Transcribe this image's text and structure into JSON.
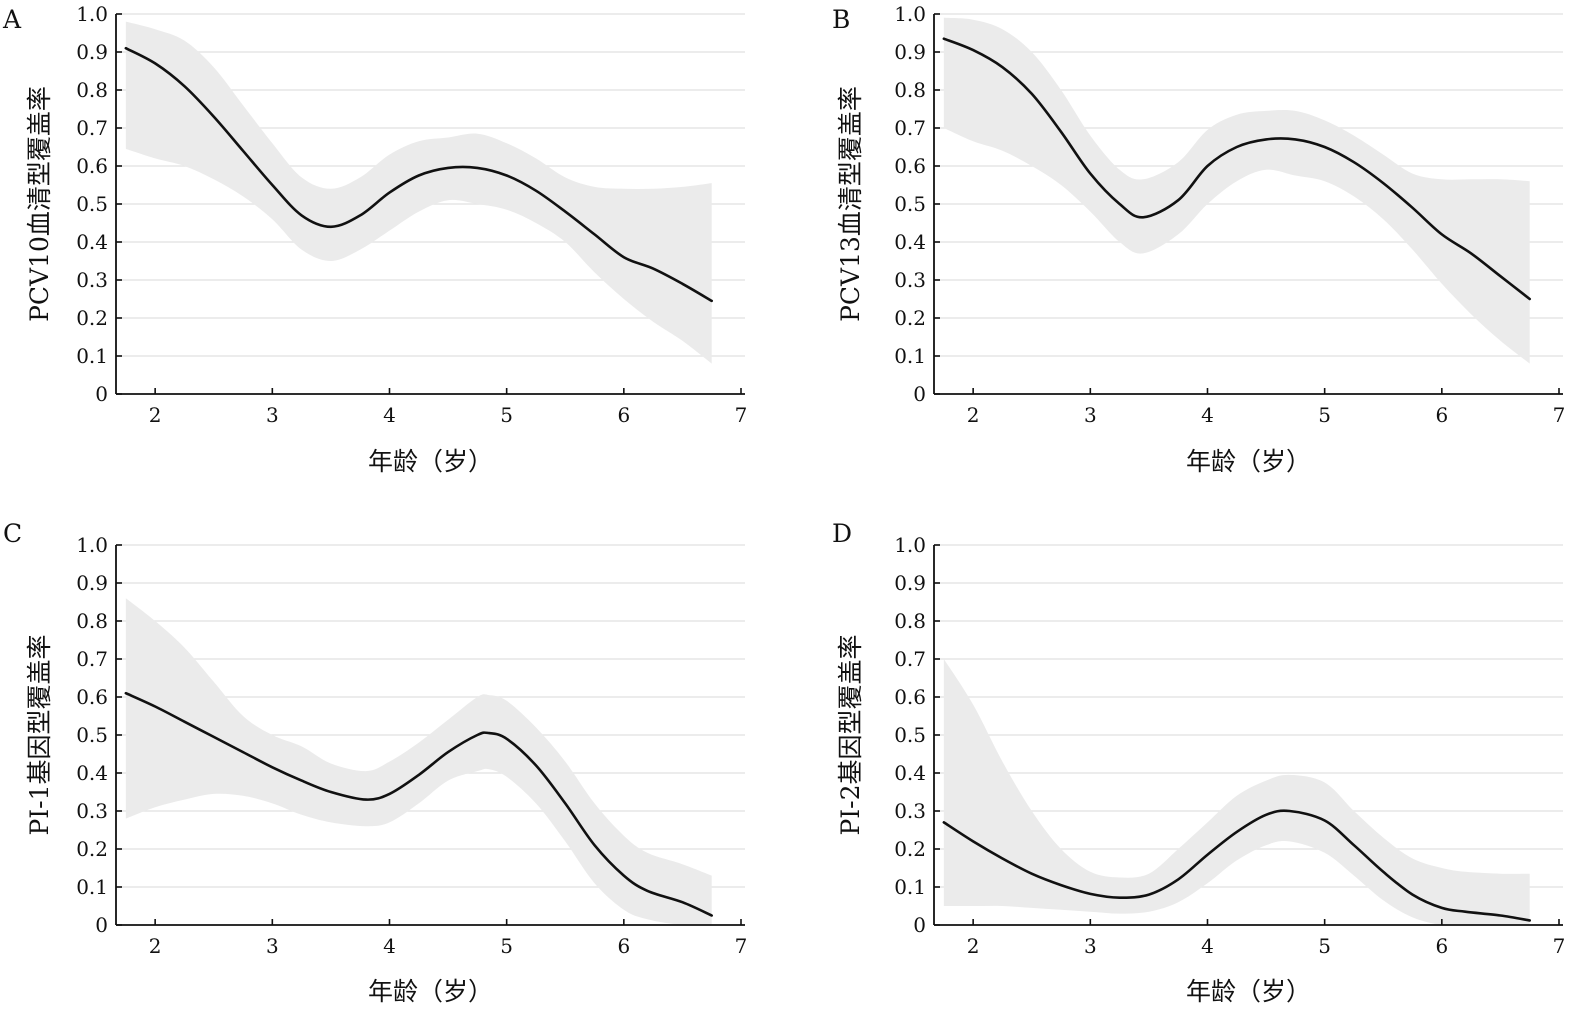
{
  "figure": {
    "panels": [
      "A",
      "B",
      "C",
      "D"
    ]
  },
  "chart_data": [
    {
      "panel": "A",
      "type": "line",
      "ylabel": "PCV10血清型覆盖率",
      "xlabel": "年龄（岁）",
      "xlim": [
        1.7,
        7.0
      ],
      "ylim": [
        0,
        1.0
      ],
      "x_ticks": [
        2,
        3,
        4,
        5,
        6,
        7
      ],
      "y_ticks": [
        0,
        0.1,
        0.2,
        0.3,
        0.4,
        0.5,
        0.6,
        0.7,
        0.8,
        0.9,
        1.0
      ],
      "y_tick_labels": [
        "0",
        "0.1",
        "0.2",
        "0.3",
        "0.4",
        "0.5",
        "0.6",
        "0.7",
        "0.8",
        "0.9",
        "1.0"
      ],
      "grid": "horizontal",
      "x": [
        1.75,
        2.0,
        2.25,
        2.5,
        2.75,
        3.0,
        3.25,
        3.5,
        3.75,
        4.0,
        4.25,
        4.5,
        4.75,
        5.0,
        5.25,
        5.5,
        5.75,
        6.0,
        6.25,
        6.5,
        6.75
      ],
      "y": [
        0.91,
        0.87,
        0.81,
        0.73,
        0.64,
        0.55,
        0.47,
        0.44,
        0.47,
        0.53,
        0.575,
        0.595,
        0.595,
        0.575,
        0.535,
        0.48,
        0.42,
        0.36,
        0.33,
        0.29,
        0.245
      ],
      "ci_upper": [
        0.98,
        0.96,
        0.93,
        0.86,
        0.76,
        0.66,
        0.57,
        0.54,
        0.57,
        0.63,
        0.665,
        0.675,
        0.685,
        0.66,
        0.62,
        0.57,
        0.545,
        0.54,
        0.54,
        0.545,
        0.555
      ],
      "ci_lower": [
        0.645,
        0.62,
        0.6,
        0.565,
        0.52,
        0.46,
        0.38,
        0.35,
        0.38,
        0.43,
        0.48,
        0.51,
        0.5,
        0.485,
        0.45,
        0.4,
        0.32,
        0.25,
        0.19,
        0.14,
        0.08
      ]
    },
    {
      "panel": "B",
      "type": "line",
      "ylabel": "PCV13血清型覆盖率",
      "xlabel": "年龄（岁）",
      "xlim": [
        1.7,
        7.0
      ],
      "ylim": [
        0,
        1.0
      ],
      "x_ticks": [
        2,
        3,
        4,
        5,
        6,
        7
      ],
      "y_ticks": [
        0,
        0.1,
        0.2,
        0.3,
        0.4,
        0.5,
        0.6,
        0.7,
        0.8,
        0.9,
        1.0
      ],
      "y_tick_labels": [
        "0",
        "0.1",
        "0.2",
        "0.3",
        "0.4",
        "0.5",
        "0.6",
        "0.7",
        "0.8",
        "0.9",
        "1.0"
      ],
      "grid": "horizontal",
      "x": [
        1.75,
        2.0,
        2.25,
        2.5,
        2.75,
        3.0,
        3.25,
        3.45,
        3.75,
        4.0,
        4.25,
        4.5,
        4.75,
        5.0,
        5.25,
        5.5,
        5.75,
        6.0,
        6.25,
        6.5,
        6.75
      ],
      "y": [
        0.935,
        0.905,
        0.86,
        0.79,
        0.69,
        0.58,
        0.5,
        0.465,
        0.51,
        0.6,
        0.65,
        0.67,
        0.67,
        0.65,
        0.61,
        0.555,
        0.49,
        0.42,
        0.37,
        0.31,
        0.25
      ],
      "ci_upper": [
        0.99,
        0.985,
        0.96,
        0.9,
        0.8,
        0.68,
        0.59,
        0.565,
        0.61,
        0.695,
        0.735,
        0.745,
        0.745,
        0.72,
        0.68,
        0.63,
        0.58,
        0.565,
        0.565,
        0.565,
        0.56
      ],
      "ci_lower": [
        0.7,
        0.665,
        0.64,
        0.6,
        0.55,
        0.48,
        0.4,
        0.37,
        0.42,
        0.5,
        0.56,
        0.59,
        0.575,
        0.56,
        0.52,
        0.46,
        0.38,
        0.29,
        0.21,
        0.14,
        0.08
      ]
    },
    {
      "panel": "C",
      "type": "line",
      "ylabel": "PI-1基因型覆盖率",
      "xlabel": "年龄（岁）",
      "xlim": [
        1.7,
        7.0
      ],
      "ylim": [
        0,
        1.0
      ],
      "x_ticks": [
        2,
        3,
        4,
        5,
        6,
        7
      ],
      "y_ticks": [
        0,
        0.1,
        0.2,
        0.3,
        0.4,
        0.5,
        0.6,
        0.7,
        0.8,
        0.9,
        1.0
      ],
      "y_tick_labels": [
        "0",
        "0.1",
        "0.2",
        "0.3",
        "0.4",
        "0.5",
        "0.6",
        "0.7",
        "0.8",
        "0.9",
        "1.0"
      ],
      "grid": "horizontal",
      "x": [
        1.75,
        2.0,
        2.25,
        2.5,
        2.75,
        3.0,
        3.25,
        3.5,
        3.8,
        4.0,
        4.25,
        4.5,
        4.75,
        4.85,
        5.0,
        5.25,
        5.5,
        5.75,
        6.0,
        6.2,
        6.5,
        6.75
      ],
      "y": [
        0.61,
        0.575,
        0.535,
        0.495,
        0.455,
        0.415,
        0.38,
        0.35,
        0.33,
        0.345,
        0.395,
        0.455,
        0.5,
        0.505,
        0.49,
        0.42,
        0.32,
        0.21,
        0.13,
        0.09,
        0.06,
        0.025
      ],
      "ci_upper": [
        0.86,
        0.8,
        0.73,
        0.64,
        0.55,
        0.5,
        0.47,
        0.425,
        0.405,
        0.43,
        0.48,
        0.54,
        0.6,
        0.605,
        0.59,
        0.52,
        0.43,
        0.32,
        0.235,
        0.19,
        0.16,
        0.13
      ],
      "ci_lower": [
        0.28,
        0.31,
        0.33,
        0.345,
        0.34,
        0.32,
        0.29,
        0.27,
        0.26,
        0.27,
        0.32,
        0.38,
        0.405,
        0.41,
        0.39,
        0.32,
        0.22,
        0.11,
        0.04,
        0.015,
        0.0,
        0.0
      ]
    },
    {
      "panel": "D",
      "type": "line",
      "ylabel": "PI-2基因型覆盖率",
      "xlabel": "年龄（岁）",
      "xlim": [
        1.7,
        7.0
      ],
      "ylim": [
        0,
        1.0
      ],
      "x_ticks": [
        2,
        3,
        4,
        5,
        6,
        7
      ],
      "y_ticks": [
        0,
        0.1,
        0.2,
        0.3,
        0.4,
        0.5,
        0.6,
        0.7,
        0.8,
        0.9,
        1.0
      ],
      "y_tick_labels": [
        "0",
        "0.1",
        "0.2",
        "0.3",
        "0.4",
        "0.5",
        "0.6",
        "0.7",
        "0.8",
        "0.9",
        "1.0"
      ],
      "grid": "horizontal",
      "x": [
        1.75,
        2.0,
        2.25,
        2.5,
        2.75,
        3.0,
        3.25,
        3.5,
        3.75,
        4.0,
        4.25,
        4.5,
        4.7,
        5.0,
        5.25,
        5.5,
        5.75,
        6.0,
        6.2,
        6.5,
        6.75
      ],
      "y": [
        0.27,
        0.22,
        0.175,
        0.135,
        0.105,
        0.082,
        0.072,
        0.08,
        0.12,
        0.185,
        0.245,
        0.29,
        0.3,
        0.275,
        0.21,
        0.14,
        0.08,
        0.045,
        0.035,
        0.025,
        0.012
      ],
      "ci_upper": [
        0.7,
        0.58,
        0.43,
        0.3,
        0.2,
        0.14,
        0.125,
        0.135,
        0.2,
        0.27,
        0.34,
        0.38,
        0.395,
        0.375,
        0.3,
        0.23,
        0.175,
        0.15,
        0.14,
        0.135,
        0.135
      ],
      "ci_lower": [
        0.05,
        0.05,
        0.05,
        0.045,
        0.04,
        0.035,
        0.03,
        0.035,
        0.06,
        0.11,
        0.17,
        0.21,
        0.22,
        0.19,
        0.13,
        0.065,
        0.02,
        0.0,
        0.0,
        0.0,
        0.0
      ]
    }
  ]
}
